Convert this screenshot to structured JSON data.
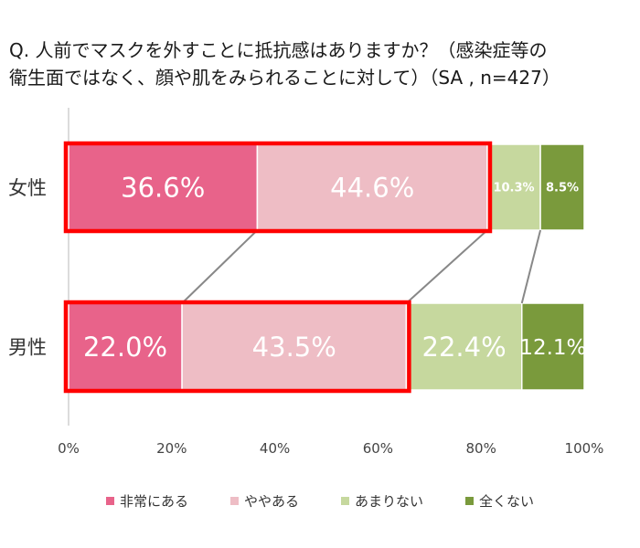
{
  "title": {
    "line1": "Q. 人前でマスクを外すことに抵抗感はありますか？（感染症等の",
    "line2": "衛生面ではなく、顔や肌をみられることに対して）（SA , n=427）"
  },
  "chart_data": {
    "type": "bar",
    "orientation": "horizontal-stacked-100",
    "categories": [
      "女性",
      "男性"
    ],
    "series": [
      {
        "name": "非常にある",
        "color": "#e8638a",
        "values": [
          36.6,
          22.0
        ],
        "labels": [
          "36.6%",
          "22.0%"
        ]
      },
      {
        "name": "ややある",
        "color": "#eebdc5",
        "values": [
          44.6,
          43.5
        ],
        "labels": [
          "44.6%",
          "43.5%"
        ]
      },
      {
        "name": "あまりない",
        "color": "#c6d89e",
        "values": [
          10.3,
          22.4
        ],
        "labels": [
          "10.3%",
          "22.4%"
        ]
      },
      {
        "name": "全くない",
        "color": "#7a9a3c",
        "values": [
          8.5,
          12.1
        ],
        "labels": [
          "8.5%",
          "12.1%"
        ]
      }
    ],
    "xlim": [
      0,
      100
    ],
    "x_ticks": [
      "0%",
      "20%",
      "40%",
      "60%",
      "80%",
      "100%"
    ],
    "highlight_color": "#ff0000",
    "highlight_series_count": 2,
    "legend_position": "bottom",
    "grid": false
  }
}
